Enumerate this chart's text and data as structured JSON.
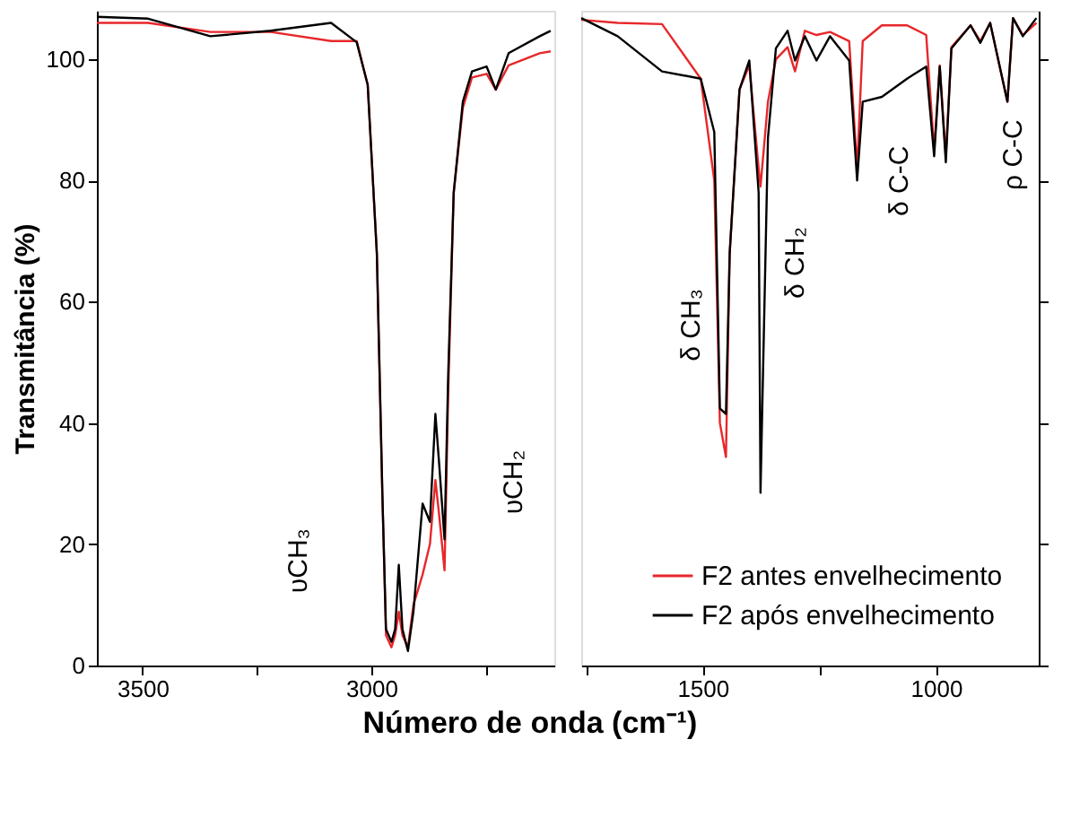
{
  "chart_data": [
    {
      "type": "line",
      "ylabel": "Transmitância (%)",
      "xlabel": "Número de onda (cm⁻¹)",
      "xlim": [
        3600,
        2600
      ],
      "ylim": [
        0,
        108
      ],
      "xticks": [
        3500,
        {
          "value": 3250,
          "label": null
        },
        3000,
        {
          "value": 2750,
          "label": null
        }
      ],
      "yticks": [
        0,
        20,
        40,
        60,
        80,
        100
      ],
      "grid": false,
      "legend": false,
      "line_style": "solid",
      "marker": "none",
      "x": [
        3600,
        3488,
        3352,
        3220,
        3088,
        3032,
        3008,
        2988,
        2976,
        2968,
        2956,
        2948,
        2940,
        2932,
        2920,
        2908,
        2888,
        2872,
        2860,
        2852,
        2840,
        2832,
        2820,
        2800,
        2780,
        2748,
        2728,
        2700,
        2632,
        2608
      ],
      "series": [
        {
          "color": "#e8272a",
          "values": [
            106,
            106,
            104.5,
            104.5,
            103,
            103,
            95.8,
            68,
            28.5,
            5,
            3,
            5,
            8.9,
            5,
            3,
            10,
            15,
            20,
            30.6,
            25,
            15.7,
            45,
            78,
            92,
            97,
            97.6,
            95,
            99,
            101,
            101.3
          ]
        },
        {
          "color": "#000000",
          "values": [
            107,
            106.7,
            103.8,
            104.7,
            106,
            102.8,
            95.8,
            68,
            28.5,
            6,
            3.9,
            6,
            16.6,
            6,
            2.4,
            8.9,
            26.7,
            23.7,
            41.5,
            33.5,
            20.8,
            48,
            78,
            93,
            98,
            98.8,
            95,
            101,
            103.8,
            104.7
          ]
        }
      ],
      "annotations": [
        "υCH₃",
        "υCH₂"
      ]
    },
    {
      "type": "line",
      "xlim": [
        1760,
        780
      ],
      "ylim": [
        0,
        108
      ],
      "tick_labels": "x",
      "xticks": [
        {
          "value": 1750,
          "label": null
        },
        1500,
        {
          "value": 1250,
          "label": null
        },
        1000
      ],
      "yticks": [
        0,
        20,
        40,
        60,
        80,
        100
      ],
      "grid": false,
      "legend": "bottom right",
      "line_style": "solid",
      "marker": "none",
      "x": [
        1760,
        1682,
        1587,
        1504,
        1475,
        1463,
        1450,
        1442,
        1421,
        1400,
        1380,
        1376,
        1360,
        1343,
        1318,
        1302,
        1281,
        1256,
        1227,
        1186,
        1169,
        1157,
        1116,
        1062,
        1021,
        1004,
        992,
        979,
        967,
        926,
        905,
        884,
        847,
        835,
        814,
        785
      ],
      "series": [
        {
          "name": "F2 antes envelhecimento",
          "color": "#e8272a",
          "values": [
            106.5,
            106,
            105.8,
            96.8,
            80,
            40,
            34.4,
            68,
            95,
            99,
            82,
            79,
            93,
            100,
            102,
            98,
            104.7,
            104,
            104.5,
            103,
            82,
            103,
            105.6,
            105.6,
            104,
            85,
            99,
            84,
            102,
            105.6,
            103,
            106,
            93,
            106.8,
            104,
            106
          ]
        },
        {
          "name": "F2 após envelhecimento",
          "color": "#000000",
          "values": [
            106.8,
            103.8,
            98,
            96.8,
            88,
            42.4,
            41.5,
            68,
            95,
            99.8,
            78,
            28.5,
            87,
            101.8,
            104.7,
            99.8,
            103.8,
            99.8,
            103.8,
            99.8,
            80,
            93,
            93.8,
            96.8,
            98.8,
            84,
            98.8,
            83,
            101.8,
            105.6,
            102.7,
            106,
            93,
            106.8,
            103.8,
            106.8
          ]
        }
      ],
      "annotations": [
        "δ CH₃",
        "δ CH₂",
        "δ C-C",
        "ρ C-C"
      ]
    }
  ]
}
